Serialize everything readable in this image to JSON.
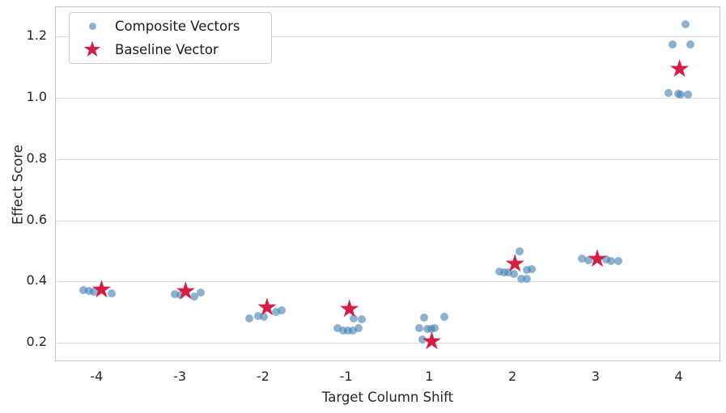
{
  "chart_data": {
    "type": "scatter",
    "title": "",
    "xlabel": "Target Column Shift",
    "ylabel": "Effect Score",
    "x_ticks": [
      -4,
      -3,
      -2,
      -1,
      1,
      2,
      3,
      4
    ],
    "y_ticks": [
      0.2,
      0.4,
      0.6,
      0.8,
      1.0,
      1.2
    ],
    "ylim": [
      0.137,
      1.295
    ],
    "grid": "horizontal-only",
    "legend": {
      "position": "upper left"
    },
    "colors": {
      "composite_dot": "rgba(70,130,180,0.62)",
      "baseline_star": "#d51e45",
      "gridline": "#dddddd",
      "spine": "#c3c6c9",
      "text": "#262626"
    },
    "series": [
      {
        "name": "Composite Vectors",
        "marker": "circle",
        "color": "rgba(70,130,180,0.62)",
        "points_format": [
          "shift",
          "jitter_dx",
          "effect_score"
        ],
        "points": [
          [
            -4,
            -0.17,
            0.372
          ],
          [
            -4,
            -0.1,
            0.369
          ],
          [
            -4,
            -0.04,
            0.366
          ],
          [
            -4,
            0.17,
            0.361
          ],
          [
            -3,
            -0.07,
            0.359
          ],
          [
            -3,
            0.0,
            0.356
          ],
          [
            -3,
            0.16,
            0.352
          ],
          [
            -3,
            0.24,
            0.364
          ],
          [
            -2,
            -0.17,
            0.28
          ],
          [
            -2,
            -0.07,
            0.287
          ],
          [
            -2,
            0.0,
            0.284
          ],
          [
            -2,
            0.15,
            0.3
          ],
          [
            -2,
            0.21,
            0.305
          ],
          [
            -1,
            0.08,
            0.28
          ],
          [
            -1,
            0.18,
            0.277
          ],
          [
            -1,
            -0.11,
            0.247
          ],
          [
            -1,
            -0.05,
            0.241
          ],
          [
            -1,
            0.01,
            0.239
          ],
          [
            -1,
            0.07,
            0.24
          ],
          [
            -1,
            0.14,
            0.247
          ],
          [
            1,
            -0.07,
            0.283
          ],
          [
            1,
            0.17,
            0.284
          ],
          [
            1,
            -0.13,
            0.247
          ],
          [
            1,
            -0.03,
            0.245
          ],
          [
            1,
            0.02,
            0.246
          ],
          [
            1,
            0.05,
            0.247
          ],
          [
            1,
            -0.09,
            0.212
          ],
          [
            2,
            0.08,
            0.498
          ],
          [
            2,
            -0.17,
            0.432
          ],
          [
            2,
            -0.11,
            0.43
          ],
          [
            2,
            -0.06,
            0.43
          ],
          [
            2,
            0.01,
            0.425
          ],
          [
            2,
            0.16,
            0.439
          ],
          [
            2,
            0.22,
            0.441
          ],
          [
            2,
            0.1,
            0.408
          ],
          [
            2,
            0.16,
            0.408
          ],
          [
            3,
            -0.17,
            0.476
          ],
          [
            3,
            -0.1,
            0.469
          ],
          [
            3,
            0.12,
            0.472
          ],
          [
            3,
            0.18,
            0.467
          ],
          [
            3,
            0.26,
            0.466
          ],
          [
            4,
            0.07,
            1.24
          ],
          [
            4,
            -0.08,
            1.175
          ],
          [
            4,
            0.13,
            1.175
          ],
          [
            4,
            -0.13,
            1.015
          ],
          [
            4,
            -0.02,
            1.014
          ],
          [
            4,
            0.01,
            1.01
          ],
          [
            4,
            0.1,
            1.01
          ]
        ]
      },
      {
        "name": "Baseline Vector",
        "marker": "star",
        "color": "#d51e45",
        "points_format": [
          "shift",
          "jitter_dx",
          "effect_score"
        ],
        "points": [
          [
            -4,
            0.05,
            0.368
          ],
          [
            -3,
            0.06,
            0.364
          ],
          [
            -2,
            0.04,
            0.311
          ],
          [
            -1,
            0.03,
            0.306
          ],
          [
            1,
            0.02,
            0.201
          ],
          [
            2,
            0.02,
            0.454
          ],
          [
            3,
            0.01,
            0.469
          ],
          [
            4,
            0.0,
            1.089
          ]
        ]
      }
    ]
  }
}
